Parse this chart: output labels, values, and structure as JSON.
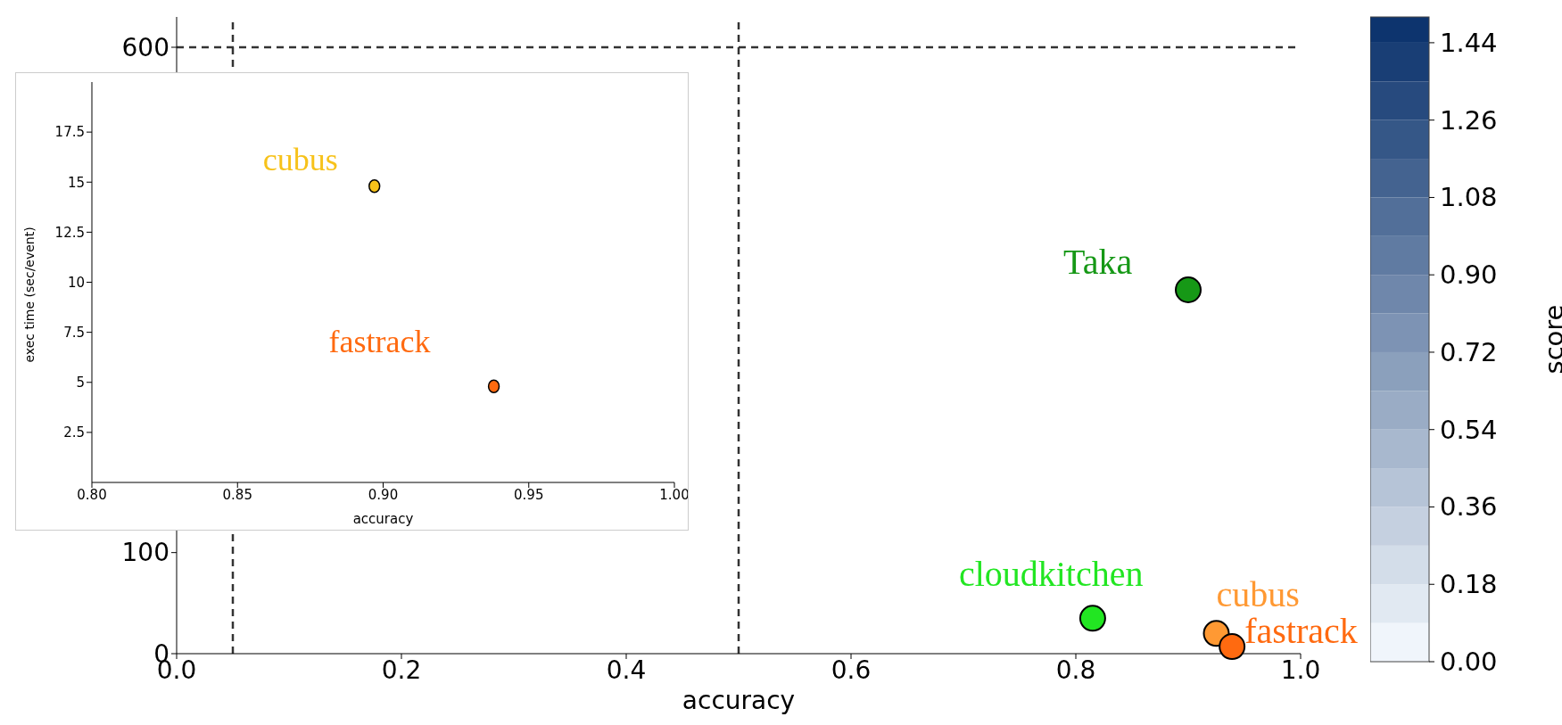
{
  "chart_data": [
    {
      "type": "scatter",
      "xlabel": "accuracy",
      "xlim": [
        0,
        1
      ],
      "ylim": [
        0,
        630
      ],
      "xticks": [
        {
          "value": 0,
          "label": "0.0"
        },
        {
          "value": 0.2,
          "label": "0.2"
        },
        {
          "value": 0.4,
          "label": "0.4"
        },
        {
          "value": 0.6,
          "label": "0.6"
        },
        {
          "value": 0.8,
          "label": "0.8"
        },
        {
          "value": 1,
          "label": "1.0"
        }
      ],
      "yticks": [
        0,
        100,
        600
      ],
      "series": [
        {
          "name": "Taka",
          "color": "#169816",
          "x": [
            0.9
          ],
          "values": [
            360
          ]
        },
        {
          "name": "cloudkitchen",
          "color": "#22e622",
          "x": [
            0.815
          ],
          "values": [
            35
          ]
        },
        {
          "name": "cubus",
          "color": "#ff9933",
          "x": [
            0.925
          ],
          "values": [
            20
          ]
        },
        {
          "name": "fastrack",
          "color": "#ff6a10",
          "x": [
            0.939
          ],
          "values": [
            7
          ]
        }
      ],
      "ref_lines": [
        {
          "axis": "x",
          "value": 0.05,
          "line_style": "dashed",
          "color": "#333333"
        },
        {
          "axis": "x",
          "value": 0.5,
          "line_style": "dashed",
          "color": "#333333"
        },
        {
          "axis": "y",
          "value": 600,
          "line_style": "dashed",
          "color": "#333333"
        }
      ],
      "clabel": "score",
      "clim": [
        0,
        1.5
      ],
      "cticks": [
        {
          "value": 0,
          "label": "0.00"
        },
        {
          "value": 0.18,
          "label": "0.18"
        },
        {
          "value": 0.36,
          "label": "0.36"
        },
        {
          "value": 0.54,
          "label": "0.54"
        },
        {
          "value": 0.72,
          "label": "0.72"
        },
        {
          "value": 0.9,
          "label": "0.90"
        },
        {
          "value": 1.08,
          "label": "1.08"
        },
        {
          "value": 1.26,
          "label": "1.26"
        },
        {
          "value": 1.44,
          "label": "1.44"
        }
      ],
      "marker": "circle",
      "grid": false,
      "legend": false
    },
    {
      "type": "scatter",
      "xlabel": "accuracy",
      "ylabel": "exec time (sec/event)",
      "xlim": [
        0.8,
        1
      ],
      "ylim": [
        0,
        20
      ],
      "xticks": [
        {
          "value": 0.8,
          "label": "0.80"
        },
        {
          "value": 0.85,
          "label": "0.85"
        },
        {
          "value": 0.9,
          "label": "0.90"
        },
        {
          "value": 0.95,
          "label": "0.95"
        },
        {
          "value": 1,
          "label": "1.00"
        }
      ],
      "yticks": [
        2.5,
        5,
        7.5,
        10,
        12.5,
        15,
        17.5
      ],
      "series": [
        {
          "name": "cubus",
          "color": "#f7c21a",
          "x": [
            0.897
          ],
          "values": [
            14.8
          ]
        },
        {
          "name": "fastrack",
          "color": "#ff6a10",
          "x": [
            0.938
          ],
          "values": [
            4.8
          ]
        }
      ],
      "marker": "circle",
      "grid": false,
      "legend": false
    }
  ]
}
